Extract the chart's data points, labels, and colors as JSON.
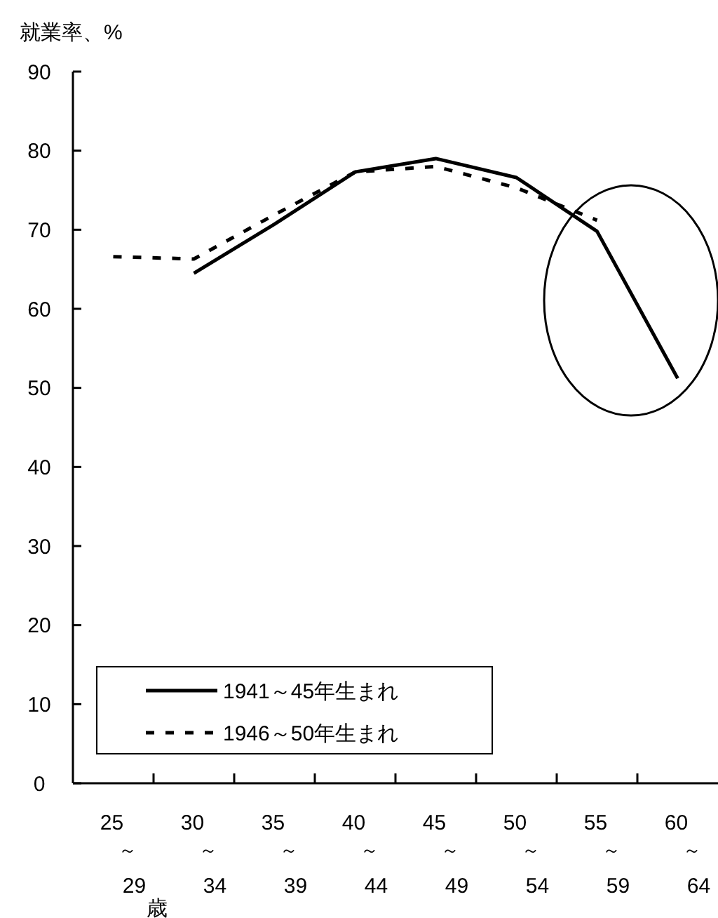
{
  "chart_data": {
    "type": "line",
    "ylabel": "就業率、%",
    "xlabel": "歳",
    "categories": [
      "25～29",
      "30～34",
      "35～39",
      "40～44",
      "45～49",
      "50～54",
      "55～59",
      "60～64"
    ],
    "series": [
      {
        "name": "1941～45年生まれ",
        "color": "#000000",
        "line_style": "solid",
        "values": [
          null,
          64.5,
          70.7,
          77.3,
          79.0,
          76.6,
          69.8,
          51.2
        ]
      },
      {
        "name": "1946～50年生まれ",
        "color": "#000000",
        "line_style": "dashed",
        "values": [
          66.6,
          66.3,
          71.9,
          77.3,
          78.0,
          75.3,
          71.2,
          null
        ]
      }
    ],
    "ylim": [
      0,
      90
    ],
    "yticks": [
      0,
      10,
      20,
      30,
      40,
      50,
      60,
      70,
      80,
      90
    ],
    "grid": false,
    "legend": "bottom left",
    "marker": "none"
  }
}
